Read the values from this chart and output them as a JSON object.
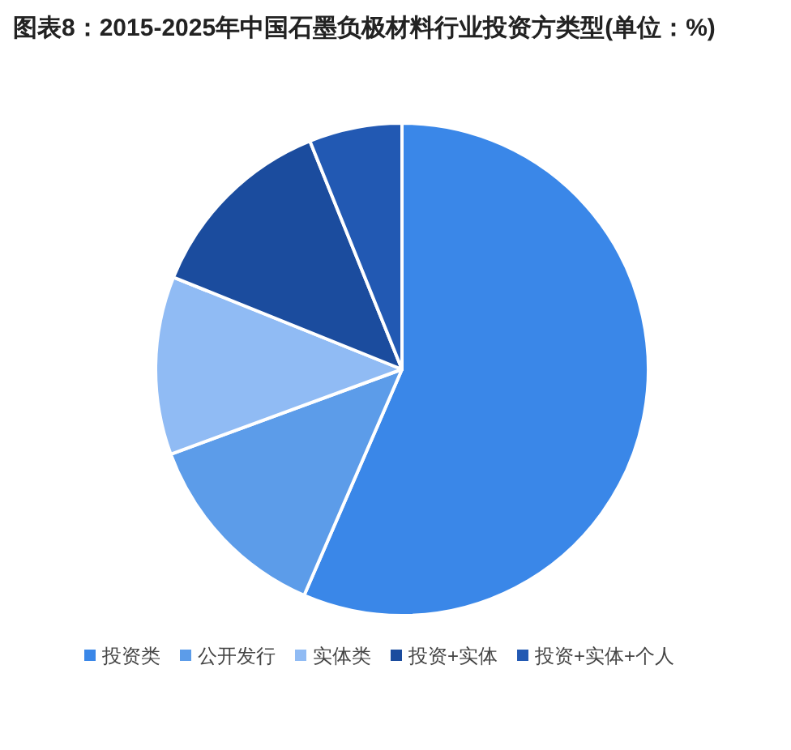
{
  "chart_data": {
    "type": "pie",
    "title": "图表8：2015-2025年中国石墨负极材料行业投资方类型(单位：%)",
    "categories": [
      "投资类",
      "公开发行",
      "实体类",
      "投资+实体",
      "投资+实体+个人"
    ],
    "values": [
      56.5,
      12.9,
      11.7,
      12.8,
      6.1
    ],
    "colors": [
      "#3a87e8",
      "#5c9ce9",
      "#90bbf4",
      "#1b4c9e",
      "#2259b3"
    ],
    "legend": "bottom"
  }
}
